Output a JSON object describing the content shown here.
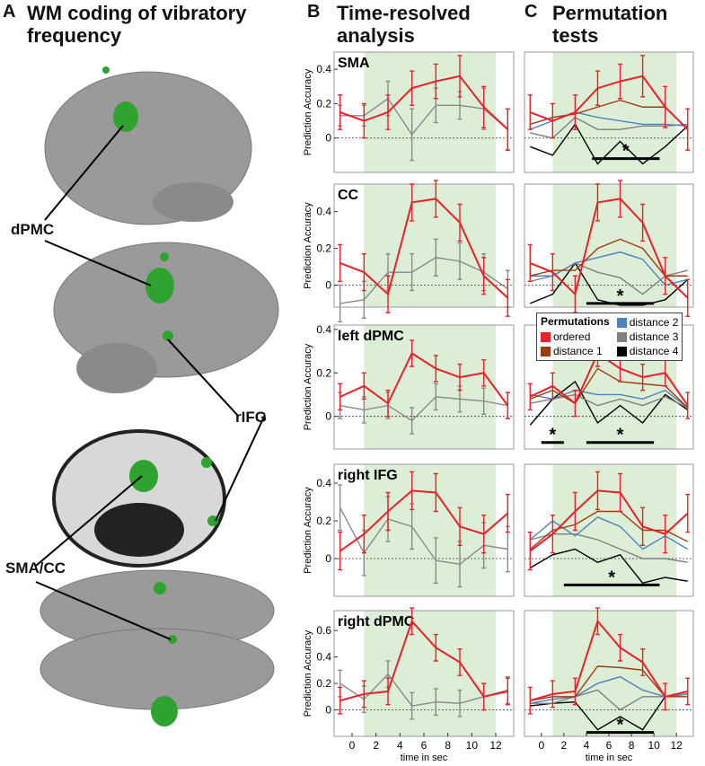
{
  "panel_a": {
    "letter": "A",
    "title": "WM coding of vibratory frequency",
    "labels": [
      "dPMC",
      "rIFG",
      "SMA/CC"
    ]
  },
  "panel_b": {
    "letter": "B",
    "title": "Time-resolved analysis"
  },
  "panel_c": {
    "letter": "C",
    "title": "Permutation tests"
  },
  "chart_data": [
    {
      "type": "line",
      "title": "SMA",
      "y_label": "Prediction Accuracy",
      "x": [
        -1,
        1,
        3,
        5,
        7,
        9,
        11,
        13
      ],
      "xlim": [
        -1.5,
        13.5
      ],
      "ylim": [
        -0.2,
        0.5
      ],
      "yticks": [
        0,
        0.2,
        0.4
      ],
      "shade": [
        1,
        12
      ],
      "series": [
        {
          "color": "#e8202a",
          "values": [
            0.15,
            0.1,
            0.15,
            0.29,
            0.33,
            0.36,
            0.18,
            0.05
          ],
          "errors": [
            0.1,
            0.1,
            0.1,
            0.1,
            0.1,
            0.12,
            0.12,
            0.12
          ]
        },
        {
          "color": "#8a8a8a",
          "values": [
            0.13,
            0.13,
            0.23,
            0.02,
            0.19,
            0.19,
            0.17,
            0.05
          ],
          "errors": [
            0.06,
            0.06,
            0.1,
            0.15,
            0.1,
            0.08,
            0.12,
            0.12
          ]
        }
      ]
    },
    {
      "type": "line",
      "title": "CC",
      "y_label": "Prediction Accuracy",
      "x": [
        -1,
        1,
        3,
        5,
        7,
        9,
        11,
        13
      ],
      "xlim": [
        -1.5,
        13.5
      ],
      "ylim": [
        -0.12,
        0.55
      ],
      "yticks": [
        0,
        0.2,
        0.4
      ],
      "shade": [
        1,
        12
      ],
      "series": [
        {
          "color": "#e8202a",
          "values": [
            0.12,
            0.07,
            -0.05,
            0.45,
            0.47,
            0.34,
            0.05,
            -0.07
          ],
          "errors": [
            0.1,
            0.1,
            0.1,
            0.1,
            0.1,
            0.1,
            0.1,
            0.1
          ]
        },
        {
          "color": "#8a8a8a",
          "values": [
            -0.1,
            -0.08,
            0.07,
            0.07,
            0.15,
            0.13,
            0.07,
            -0.02
          ],
          "errors": [
            0.1,
            0.1,
            0.1,
            0.1,
            0.1,
            0.1,
            0.1,
            0.1
          ]
        }
      ]
    },
    {
      "type": "line",
      "title": "left dPMC",
      "y_label": "Prediction Accuracy",
      "x": [
        -1,
        1,
        3,
        5,
        7,
        9,
        11,
        13
      ],
      "xlim": [
        -1.5,
        13.5
      ],
      "ylim": [
        -0.15,
        0.42
      ],
      "yticks": [
        0,
        0.2,
        0.4
      ],
      "shade": [
        1,
        12
      ],
      "series": [
        {
          "color": "#e8202a",
          "values": [
            0.09,
            0.14,
            0.06,
            0.29,
            0.22,
            0.18,
            0.2,
            0.05
          ],
          "errors": [
            0.06,
            0.06,
            0.06,
            0.06,
            0.06,
            0.06,
            0.06,
            0.06
          ]
        },
        {
          "color": "#8a8a8a",
          "values": [
            0.05,
            0.03,
            0.05,
            -0.02,
            0.09,
            0.08,
            0.07,
            0.05
          ],
          "errors": [
            0.06,
            0.06,
            0.06,
            0.06,
            0.06,
            0.06,
            0.06,
            0.06
          ]
        }
      ]
    },
    {
      "type": "line",
      "title": "right IFG",
      "y_label": "Prediction Accuracy",
      "x": [
        -1,
        1,
        3,
        5,
        7,
        9,
        11,
        13
      ],
      "xlim": [
        -1.5,
        13.5
      ],
      "ylim": [
        -0.2,
        0.5
      ],
      "yticks": [
        0,
        0.2,
        0.4
      ],
      "shade": [
        1,
        12
      ],
      "series": [
        {
          "color": "#e8202a",
          "values": [
            0.04,
            0.13,
            0.25,
            0.36,
            0.35,
            0.17,
            0.13,
            0.24
          ],
          "errors": [
            0.1,
            0.1,
            0.1,
            0.1,
            0.1,
            0.1,
            0.1,
            0.1
          ]
        },
        {
          "color": "#8a8a8a",
          "values": [
            0.27,
            0.03,
            0.21,
            0.17,
            -0.01,
            -0.03,
            0.07,
            0.05
          ],
          "errors": [
            0.12,
            0.12,
            0.12,
            0.12,
            0.12,
            0.12,
            0.12,
            0.12
          ]
        }
      ]
    },
    {
      "type": "line",
      "title": "right dPMC",
      "y_label": "Prediction Accuracy",
      "x": [
        -1,
        1,
        3,
        5,
        7,
        9,
        11,
        13
      ],
      "xlim": [
        -1.5,
        13.5
      ],
      "xticks": [
        0,
        2,
        4,
        6,
        8,
        10,
        12
      ],
      "x_label": "time in sec",
      "ylim": [
        -0.2,
        0.75
      ],
      "yticks": [
        0,
        0.2,
        0.4,
        0.6
      ],
      "shade": [
        1,
        12
      ],
      "series": [
        {
          "color": "#e8202a",
          "values": [
            0.07,
            0.12,
            0.14,
            0.67,
            0.47,
            0.36,
            0.1,
            0.14
          ],
          "errors": [
            0.1,
            0.1,
            0.1,
            0.1,
            0.1,
            0.1,
            0.1,
            0.1
          ]
        },
        {
          "color": "#8a8a8a",
          "values": [
            0.2,
            0.08,
            0.27,
            0.03,
            0.06,
            0.05,
            0.1,
            0.15
          ],
          "errors": [
            0.1,
            0.1,
            0.1,
            0.1,
            0.1,
            0.1,
            0.1,
            0.1
          ]
        }
      ]
    },
    {
      "type": "line",
      "x": [
        -1,
        1,
        3,
        5,
        7,
        9,
        11,
        13
      ],
      "xlim": [
        -1.5,
        13.5
      ],
      "ylim": [
        -0.2,
        0.5
      ],
      "shade": [
        1,
        12
      ],
      "significance": [
        {
          "x": [
            4.5,
            10.5
          ],
          "y": -0.12,
          "label": "*"
        }
      ],
      "series": [
        {
          "color": "#e8202a",
          "values": [
            0.15,
            0.1,
            0.15,
            0.29,
            0.33,
            0.36,
            0.18,
            0.05
          ],
          "errors": [
            0.1,
            0.1,
            0.1,
            0.1,
            0.1,
            0.12,
            0.12,
            0.12
          ]
        },
        {
          "color": "#9c3d0f",
          "values": [
            0.08,
            0.12,
            0.14,
            0.18,
            0.22,
            0.18,
            0.18,
            0.05
          ]
        },
        {
          "color": "#4f81bd",
          "values": [
            0.05,
            0.1,
            0.15,
            0.12,
            0.1,
            0.08,
            0.08,
            0.07
          ]
        },
        {
          "color": "#808080",
          "values": [
            0.03,
            0,
            0.12,
            0.05,
            0.05,
            0.07,
            0.07,
            0.08
          ]
        },
        {
          "color": "#000000",
          "values": [
            -0.05,
            -0.1,
            0.08,
            -0.15,
            -0.02,
            -0.15,
            -0.05,
            0.07
          ]
        }
      ]
    },
    {
      "type": "line",
      "x": [
        -1,
        1,
        3,
        5,
        7,
        9,
        11,
        13
      ],
      "xlim": [
        -1.5,
        13.5
      ],
      "ylim": [
        -0.12,
        0.55
      ],
      "shade": [
        1,
        12
      ],
      "legend": "bottom",
      "legend_title": "Permutations",
      "significance": [
        {
          "x": [
            4,
            10
          ],
          "y": -0.1,
          "label": "*"
        }
      ],
      "series": [
        {
          "name": "ordered",
          "color": "#e8202a",
          "values": [
            0.12,
            0.07,
            -0.05,
            0.45,
            0.47,
            0.34,
            0.05,
            -0.07
          ],
          "errors": [
            0.1,
            0.1,
            0.1,
            0.1,
            0.1,
            0.1,
            0.1,
            0.1
          ]
        },
        {
          "name": "distance 1",
          "color": "#9c3d0f",
          "values": [
            0.05,
            0.08,
            0.08,
            0.2,
            0.25,
            0.2,
            0.05,
            0.05
          ]
        },
        {
          "name": "distance 2",
          "color": "#4f81bd",
          "values": [
            0.05,
            0.05,
            0.12,
            0.15,
            0.18,
            0.14,
            0,
            0.03
          ]
        },
        {
          "name": "distance 3",
          "color": "#808080",
          "values": [
            0.02,
            0.05,
            0.12,
            0.07,
            0.04,
            -0.05,
            0.05,
            0.08
          ]
        },
        {
          "name": "distance 4",
          "color": "#000000",
          "values": [
            -0.1,
            -0.05,
            0.12,
            -0.08,
            -0.11,
            -0.11,
            -0.08,
            0.03
          ]
        }
      ]
    },
    {
      "type": "line",
      "x": [
        -1,
        1,
        3,
        5,
        7,
        9,
        11,
        13
      ],
      "xlim": [
        -1.5,
        13.5
      ],
      "ylim": [
        -0.15,
        0.42
      ],
      "shade": [
        1,
        12
      ],
      "significance": [
        {
          "x": [
            0,
            2
          ],
          "y": -0.12,
          "label": "*"
        },
        {
          "x": [
            4,
            10
          ],
          "y": -0.12,
          "label": "*"
        }
      ],
      "series": [
        {
          "color": "#e8202a",
          "values": [
            0.09,
            0.14,
            0.06,
            0.29,
            0.22,
            0.18,
            0.2,
            0.05
          ],
          "errors": [
            0.06,
            0.06,
            0.06,
            0.06,
            0.06,
            0.06,
            0.06,
            0.06
          ]
        },
        {
          "color": "#9c3d0f",
          "values": [
            0.08,
            0.12,
            0.06,
            0.22,
            0.16,
            0.15,
            0.14,
            0.04
          ]
        },
        {
          "color": "#4f81bd",
          "values": [
            0.1,
            0.08,
            0.12,
            0.1,
            0.1,
            0.08,
            0.12,
            0.04
          ]
        },
        {
          "color": "#808080",
          "values": [
            0.06,
            0.08,
            0.1,
            0.05,
            0.08,
            0.05,
            0.09,
            0.04
          ]
        },
        {
          "color": "#000000",
          "values": [
            -0.04,
            0.08,
            0.16,
            -0.03,
            0.05,
            -0.03,
            0.1,
            0.03
          ]
        }
      ]
    },
    {
      "type": "line",
      "x": [
        -1,
        1,
        3,
        5,
        7,
        9,
        11,
        13
      ],
      "xlim": [
        -1.5,
        13.5
      ],
      "ylim": [
        -0.2,
        0.5
      ],
      "shade": [
        1,
        12
      ],
      "significance": [
        {
          "x": [
            2,
            10.5
          ],
          "y": -0.14,
          "label": "*"
        }
      ],
      "series": [
        {
          "color": "#e8202a",
          "values": [
            0.04,
            0.13,
            0.25,
            0.36,
            0.35,
            0.17,
            0.13,
            0.24
          ],
          "errors": [
            0.1,
            0.1,
            0.1,
            0.1,
            0.1,
            0.1,
            0.1,
            0.1
          ]
        },
        {
          "color": "#9c3d0f",
          "values": [
            0.05,
            0.15,
            0.18,
            0.25,
            0.25,
            0.15,
            0.15,
            0.09
          ]
        },
        {
          "color": "#4f81bd",
          "values": [
            0.1,
            0.2,
            0.12,
            0.22,
            0.17,
            0.05,
            0.12,
            0.05
          ]
        },
        {
          "color": "#808080",
          "values": [
            0.1,
            0.13,
            0.13,
            0.1,
            0.05,
            0,
            0,
            -0.02
          ]
        },
        {
          "color": "#000000",
          "values": [
            -0.05,
            0.02,
            0.05,
            -0.02,
            0.02,
            -0.13,
            -0.1,
            -0.12
          ]
        }
      ]
    },
    {
      "type": "line",
      "x": [
        -1,
        1,
        3,
        5,
        7,
        9,
        11,
        13
      ],
      "xlim": [
        -1.5,
        13.5
      ],
      "xticks": [
        0,
        2,
        4,
        6,
        8,
        10,
        12
      ],
      "x_label": "time in sec",
      "ylim": [
        -0.2,
        0.75
      ],
      "shade": [
        1,
        12
      ],
      "significance": [
        {
          "x": [
            4,
            10
          ],
          "y": -0.17,
          "label": "*"
        }
      ],
      "series": [
        {
          "color": "#e8202a",
          "values": [
            0.07,
            0.12,
            0.14,
            0.67,
            0.47,
            0.36,
            0.1,
            0.14
          ],
          "errors": [
            0.1,
            0.1,
            0.1,
            0.1,
            0.1,
            0.1,
            0.1,
            0.1
          ]
        },
        {
          "color": "#9c3d0f",
          "values": [
            0.07,
            0.1,
            0.1,
            0.33,
            0.32,
            0.3,
            0.1,
            0.1
          ]
        },
        {
          "color": "#4f81bd",
          "values": [
            0.05,
            0.08,
            0.1,
            0.2,
            0.25,
            0.15,
            0.1,
            0.12
          ]
        },
        {
          "color": "#808080",
          "values": [
            0.05,
            0.05,
            0.1,
            0.15,
            0,
            0.1,
            0.1,
            0.1
          ]
        },
        {
          "color": "#000000",
          "values": [
            0.03,
            0.05,
            0.06,
            -0.15,
            -0.05,
            -0.15,
            0.1,
            0.12
          ]
        }
      ]
    }
  ]
}
